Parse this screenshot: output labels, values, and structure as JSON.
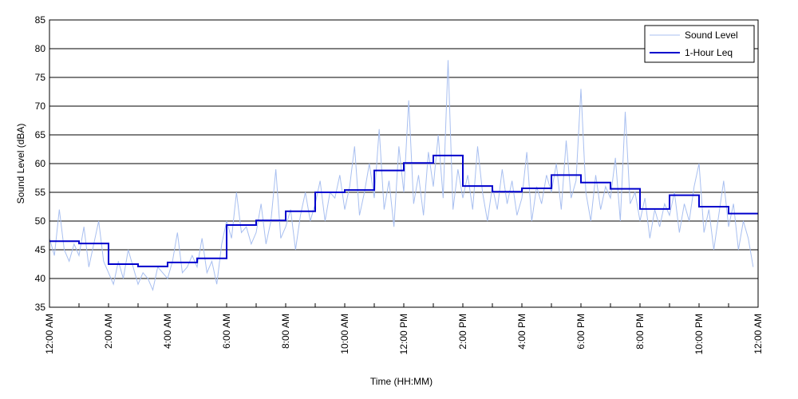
{
  "chart_data": {
    "type": "line",
    "xlabel": "Time (HH:MM)",
    "ylabel": "Sound Level (dBA)",
    "series": [
      {
        "name": "Sound Level",
        "color": "#a8bff0",
        "step": false,
        "x": [
          0,
          10,
          20,
          30,
          40,
          50,
          60,
          70,
          80,
          90,
          100,
          110,
          120,
          130,
          140,
          150,
          160,
          170,
          180,
          190,
          200,
          210,
          220,
          230,
          240,
          250,
          260,
          270,
          280,
          290,
          300,
          310,
          320,
          330,
          340,
          350,
          360,
          370,
          380,
          390,
          400,
          410,
          420,
          430,
          440,
          450,
          460,
          470,
          480,
          490,
          500,
          510,
          520,
          530,
          540,
          550,
          560,
          570,
          580,
          590,
          600,
          610,
          620,
          630,
          640,
          650,
          660,
          670,
          680,
          690,
          700,
          710,
          720,
          730,
          740,
          750,
          760,
          770,
          780,
          790,
          800,
          810,
          820,
          830,
          840,
          850,
          860,
          870,
          880,
          890,
          900,
          910,
          920,
          930,
          940,
          950,
          960,
          970,
          980,
          990,
          1000,
          1010,
          1020,
          1030,
          1040,
          1050,
          1060,
          1070,
          1080,
          1090,
          1100,
          1110,
          1120,
          1130,
          1140,
          1150,
          1160,
          1170,
          1180,
          1190,
          1200,
          1210,
          1220,
          1230,
          1240,
          1250,
          1260,
          1270,
          1280,
          1290,
          1300,
          1310,
          1320,
          1330,
          1340,
          1350,
          1360,
          1370,
          1380,
          1390,
          1400,
          1410,
          1420,
          1430
        ],
        "values": [
          47,
          44,
          52,
          45,
          43,
          46,
          44,
          49,
          42,
          46,
          50,
          43,
          41,
          39,
          43,
          40,
          45,
          42,
          39,
          41,
          40,
          38,
          42,
          41,
          40,
          43,
          48,
          41,
          42,
          44,
          42,
          47,
          41,
          43,
          39,
          46,
          50,
          47,
          55,
          48,
          49,
          46,
          48,
          53,
          46,
          50,
          59,
          47,
          49,
          52,
          45,
          51,
          55,
          50,
          53,
          57,
          50,
          55,
          54,
          58,
          52,
          56,
          63,
          51,
          55,
          60,
          54,
          66,
          52,
          57,
          49,
          63,
          55,
          71,
          53,
          58,
          51,
          62,
          56,
          65,
          54,
          78,
          52,
          59,
          54,
          58,
          52,
          63,
          55,
          50,
          56,
          52,
          59,
          53,
          57,
          51,
          54,
          62,
          50,
          56,
          53,
          58,
          55,
          60,
          52,
          64,
          54,
          57,
          73,
          55,
          50,
          58,
          52,
          56,
          54,
          61,
          50,
          69,
          53,
          55,
          50,
          54,
          47,
          52,
          49,
          53,
          51,
          55,
          48,
          53,
          50,
          56,
          60,
          48,
          52,
          45,
          51,
          57,
          49,
          53,
          45,
          50,
          47,
          42
        ]
      },
      {
        "name": "1-Hour Leq",
        "color": "#0000cc",
        "step": true,
        "x": [
          0,
          60,
          120,
          180,
          240,
          300,
          360,
          420,
          480,
          540,
          600,
          660,
          720,
          780,
          840,
          900,
          960,
          1020,
          1080,
          1140,
          1200,
          1260,
          1320,
          1380
        ],
        "values": [
          46.5,
          46.1,
          42.5,
          42.1,
          42.8,
          43.5,
          49.3,
          50.1,
          51.7,
          55.0,
          55.4,
          58.8,
          60.1,
          61.4,
          56.1,
          55.1,
          55.7,
          58.0,
          56.7,
          55.6,
          52.1,
          54.5,
          52.5,
          51.3
        ]
      }
    ],
    "xlim": [
      0,
      1440
    ],
    "xticks": [
      {
        "value": 0,
        "label": "12:00 AM"
      },
      {
        "value": 120,
        "label": "2:00 AM"
      },
      {
        "value": 240,
        "label": "4:00 AM"
      },
      {
        "value": 360,
        "label": "6:00 AM"
      },
      {
        "value": 480,
        "label": "8:00 AM"
      },
      {
        "value": 600,
        "label": "10:00 AM"
      },
      {
        "value": 720,
        "label": "12:00 PM"
      },
      {
        "value": 840,
        "label": "2:00 PM"
      },
      {
        "value": 960,
        "label": "4:00 PM"
      },
      {
        "value": 1080,
        "label": "6:00 PM"
      },
      {
        "value": 1200,
        "label": "8:00 PM"
      },
      {
        "value": 1320,
        "label": "10:00 PM"
      },
      {
        "value": 1440,
        "label": "12:00 AM"
      }
    ],
    "xminorticks": [
      60,
      180,
      300,
      420,
      540,
      660,
      780,
      900,
      1020,
      1140,
      1260,
      1380
    ],
    "ylim": [
      35,
      85
    ],
    "yticks": [
      35,
      40,
      45,
      50,
      55,
      60,
      65,
      70,
      75,
      80,
      85
    ],
    "grid": true,
    "legend": "upper right"
  }
}
